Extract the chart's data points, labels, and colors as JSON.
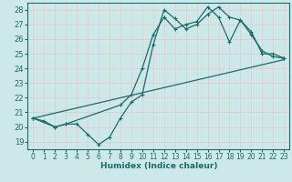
{
  "xlabel": "Humidex (Indice chaleur)",
  "ylabel": "",
  "bg_color": "#cce8e8",
  "grid_color": "#e8c8c8",
  "line_color": "#1a6b6b",
  "xlim": [
    -0.5,
    23.5
  ],
  "ylim": [
    18.5,
    28.5
  ],
  "yticks": [
    19,
    20,
    21,
    22,
    23,
    24,
    25,
    26,
    27,
    28
  ],
  "xticks": [
    0,
    1,
    2,
    3,
    4,
    5,
    6,
    7,
    8,
    9,
    10,
    11,
    12,
    13,
    14,
    15,
    16,
    17,
    18,
    19,
    20,
    21,
    22,
    23
  ],
  "line1_x": [
    0,
    1,
    2,
    3,
    4,
    5,
    6,
    7,
    8,
    9,
    10,
    11,
    12,
    13,
    14,
    15,
    16,
    17,
    18,
    19,
    20,
    21,
    22,
    23
  ],
  "line1_y": [
    20.6,
    20.4,
    20.0,
    20.2,
    20.2,
    19.5,
    18.8,
    19.3,
    20.6,
    21.7,
    22.2,
    25.6,
    28.0,
    27.4,
    26.7,
    27.0,
    27.7,
    28.2,
    27.5,
    27.3,
    26.3,
    25.2,
    24.8,
    24.7
  ],
  "line2_x": [
    0,
    2,
    3,
    8,
    9,
    10,
    11,
    12,
    13,
    14,
    15,
    16,
    17,
    18,
    19,
    20,
    21,
    22,
    23
  ],
  "line2_y": [
    20.6,
    20.0,
    20.2,
    21.5,
    22.2,
    24.0,
    26.3,
    27.5,
    26.7,
    27.0,
    27.2,
    28.2,
    27.5,
    25.8,
    27.3,
    26.5,
    25.0,
    25.0,
    24.7
  ],
  "line3_x": [
    0,
    23
  ],
  "line3_y": [
    20.6,
    24.6
  ]
}
